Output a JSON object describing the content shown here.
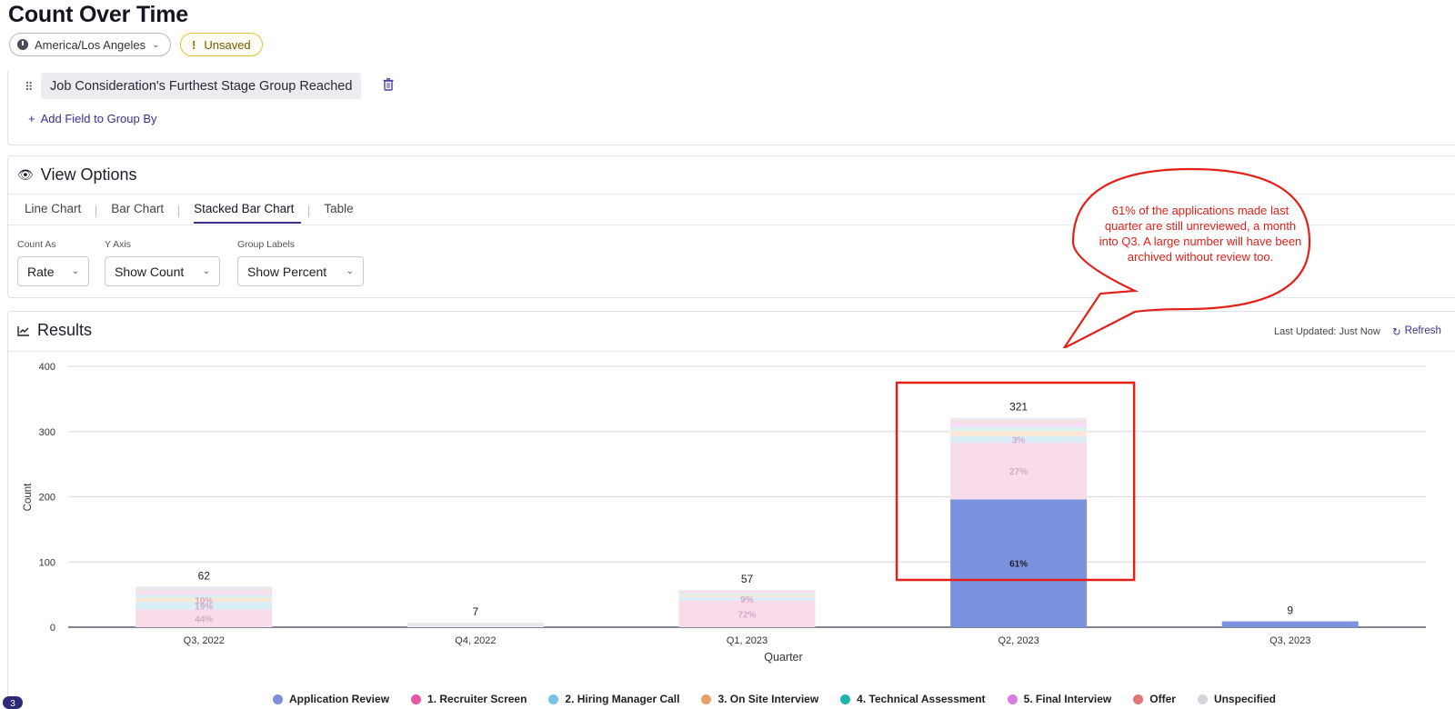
{
  "page": {
    "title": "Count Over Time",
    "timezone": "America/Los Angeles",
    "status_badge": "Unsaved"
  },
  "group_by": {
    "field": "Job Consideration's Furthest Stage Group Reached",
    "add_label": "Add Field to Group By"
  },
  "view_options": {
    "title": "View Options",
    "tabs": [
      "Line Chart",
      "Bar Chart",
      "Stacked Bar Chart",
      "Table"
    ],
    "active_tab": "Stacked Bar Chart",
    "controls": [
      {
        "label": "Count As",
        "value": "Rate"
      },
      {
        "label": "Y Axis",
        "value": "Show Count"
      },
      {
        "label": "Group Labels",
        "value": "Show Percent"
      }
    ]
  },
  "results": {
    "title": "Results",
    "last_updated": "Last Updated: Just Now",
    "refresh_label": "Refresh"
  },
  "annotation": {
    "text": "61% of the applications made last quarter are still unreviewed, a month into Q3. A large number will have been archived without review too.",
    "color": "#e32119",
    "highlight": "Q2, 2023"
  },
  "badge_count": "3",
  "chart_data": {
    "type": "bar",
    "stacked": true,
    "xlabel": "Quarter",
    "ylabel": "Count",
    "ylim": [
      0,
      400
    ],
    "yticks": [
      0,
      100,
      200,
      300,
      400
    ],
    "categories": [
      "Q3, 2022",
      "Q4, 2022",
      "Q1, 2023",
      "Q2, 2023",
      "Q3, 2023"
    ],
    "totals": [
      62,
      7,
      57,
      321,
      9
    ],
    "series": [
      {
        "name": "Application Review",
        "color": "#7b93de",
        "values": [
          0,
          0,
          0,
          196,
          9
        ],
        "labels": [
          "",
          "",
          "",
          "61%",
          ""
        ]
      },
      {
        "name": "1. Recruiter Screen",
        "color": "#f9dcea",
        "values": [
          27,
          0,
          41,
          87,
          0
        ],
        "labels": [
          "44%",
          "",
          "72%",
          "27%",
          ""
        ]
      },
      {
        "name": "2. Hiring Manager Call",
        "color": "#d9eef9",
        "values": [
          12,
          0,
          5,
          10,
          0
        ],
        "labels": [
          "19%",
          "",
          "9%",
          "3%",
          ""
        ]
      },
      {
        "name": "3. On Site Interview",
        "color": "#fde7d6",
        "values": [
          6,
          0,
          3,
          8,
          0
        ],
        "labels": [
          "10%",
          "",
          "",
          "",
          ""
        ]
      },
      {
        "name": "4. Technical Assessment",
        "color": "#d6f3ef",
        "values": [
          4,
          0,
          2,
          5,
          0
        ],
        "labels": [
          "",
          "",
          "",
          "",
          ""
        ]
      },
      {
        "name": "5. Final Interview",
        "color": "#f3def6",
        "values": [
          5,
          0,
          3,
          7,
          0
        ],
        "labels": [
          "",
          "",
          "",
          "",
          ""
        ]
      },
      {
        "name": "Offer",
        "color": "#f9dede",
        "values": [
          3,
          0,
          1,
          4,
          0
        ],
        "labels": [
          "",
          "",
          "",
          "",
          ""
        ]
      },
      {
        "name": "Unspecified",
        "color": "#e8e8ee",
        "values": [
          5,
          7,
          2,
          4,
          0
        ],
        "labels": [
          "",
          "",
          "",
          "",
          ""
        ]
      }
    ],
    "legend_colors": [
      "#7b8fdc",
      "#e357a8",
      "#78c3ea",
      "#e8a06a",
      "#1fb5ad",
      "#d77de3",
      "#e07676",
      "#d4d4dc"
    ],
    "legend_position": "bottom"
  }
}
